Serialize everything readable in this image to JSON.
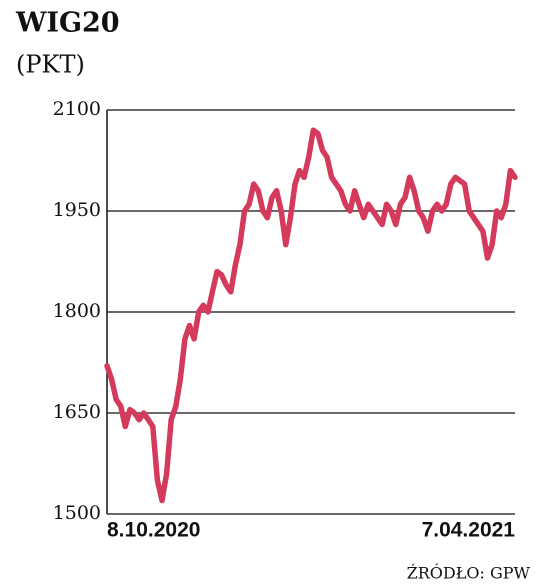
{
  "chart_data": {
    "type": "line",
    "title": "WIG20",
    "subtitle": "(PKT)",
    "source": "ŹRÓDŁO: GPW",
    "categories": [
      "8.10.2020",
      null,
      null,
      null,
      null,
      null,
      null,
      null,
      null,
      null,
      null,
      null,
      null,
      null,
      null,
      null,
      null,
      null,
      null,
      null,
      null,
      null,
      null,
      null,
      null,
      null,
      null,
      null,
      null,
      null,
      null,
      null,
      null,
      null,
      null,
      null,
      null,
      null,
      null,
      null,
      null,
      null,
      null,
      null,
      null,
      null,
      null,
      null,
      null,
      null,
      null,
      null,
      null,
      null,
      null,
      null,
      null,
      null,
      null,
      null,
      null,
      null,
      null,
      null,
      null,
      null,
      null,
      null,
      null,
      null,
      null,
      null,
      null,
      null,
      null,
      null,
      null,
      null,
      null,
      null,
      null,
      null,
      null,
      null,
      null,
      null,
      null,
      null,
      null,
      "7.04.2021"
    ],
    "values": [
      1720,
      1700,
      1670,
      1660,
      1630,
      1655,
      1650,
      1640,
      1650,
      1640,
      1630,
      1550,
      1520,
      1560,
      1640,
      1660,
      1700,
      1760,
      1780,
      1760,
      1800,
      1810,
      1800,
      1830,
      1860,
      1855,
      1840,
      1830,
      1870,
      1900,
      1950,
      1960,
      1990,
      1980,
      1950,
      1940,
      1970,
      1980,
      1950,
      1900,
      1940,
      1990,
      2010,
      2000,
      2030,
      2070,
      2065,
      2040,
      2030,
      2000,
      1990,
      1980,
      1960,
      1950,
      1980,
      1960,
      1940,
      1960,
      1950,
      1940,
      1930,
      1960,
      1950,
      1930,
      1960,
      1970,
      2000,
      1980,
      1950,
      1940,
      1920,
      1950,
      1960,
      1950,
      1960,
      1990,
      2000,
      1995,
      1990,
      1950,
      1940,
      1930,
      1920,
      1880,
      1900,
      1950,
      1940,
      1960,
      2010,
      2000
    ],
    "color": "#d43a5c",
    "ylim": [
      1500,
      2100
    ],
    "yticks": [
      1500,
      1650,
      1800,
      1950,
      2100
    ],
    "grid": true
  }
}
